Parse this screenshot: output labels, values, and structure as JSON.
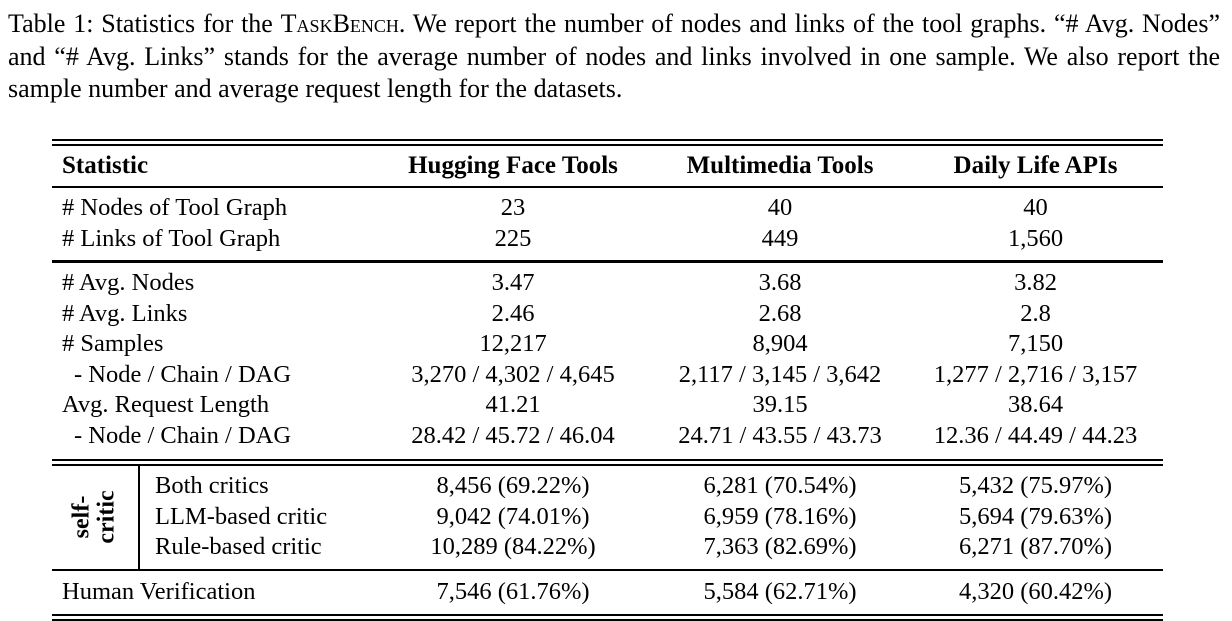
{
  "caption": {
    "part1": "Table 1: Statistics for the ",
    "taskbench": "TaskBench",
    "part2": ". We report the number of nodes and links of the tool graphs. “# Avg. Nodes” and “# Avg. Links” stands for the average number of nodes and links involved in one sample. We also report the sample number and average request length for the datasets."
  },
  "table": {
    "header": {
      "statistic": "Statistic",
      "col1": "Hugging Face Tools",
      "col2": "Multimedia Tools",
      "col3": "Daily Life APIs"
    },
    "section1": {
      "rows": [
        {
          "label": "# Nodes of Tool Graph",
          "v1": "23",
          "v2": "40",
          "v3": "40"
        },
        {
          "label": "# Links of Tool Graph",
          "v1": "225",
          "v2": "449",
          "v3": "1,560"
        }
      ]
    },
    "section2": {
      "rows": [
        {
          "label": "# Avg. Nodes",
          "v1": "3.47",
          "v2": "3.68",
          "v3": "3.82"
        },
        {
          "label": "# Avg. Links",
          "v1": "2.46",
          "v2": "2.68",
          "v3": "2.8"
        },
        {
          "label": "# Samples",
          "v1": "12,217",
          "v2": "8,904",
          "v3": "7,150"
        },
        {
          "label": "- Node / Chain / DAG",
          "v1": "3,270 / 4,302 / 4,645",
          "v2": "2,117 / 3,145 / 3,642",
          "v3": "1,277 / 2,716 / 3,157"
        },
        {
          "label": "Avg. Request Length",
          "v1": "41.21",
          "v2": "39.15",
          "v3": "38.64"
        },
        {
          "label": "- Node / Chain / DAG",
          "v1": "28.42 / 45.72 / 46.04",
          "v2": "24.71 / 43.55 / 43.73",
          "v3": "12.36 / 44.49 / 44.23"
        }
      ]
    },
    "self_critic": {
      "rot_label_line1": "self-",
      "rot_label_line2": "critic",
      "rows": [
        {
          "label": "Both critics",
          "v1": "8,456 (69.22%)",
          "v2": "6,281 (70.54%)",
          "v3": "5,432 (75.97%)"
        },
        {
          "label": "LLM-based critic",
          "v1": "9,042 (74.01%)",
          "v2": "6,959 (78.16%)",
          "v3": "5,694 (79.63%)"
        },
        {
          "label": "Rule-based critic",
          "v1": "10,289 (84.22%)",
          "v2": "7,363 (82.69%)",
          "v3": "6,271 (87.70%)"
        }
      ]
    },
    "footer": {
      "row": {
        "label": "Human Verification",
        "v1": "7,546 (61.76%)",
        "v2": "5,584 (62.71%)",
        "v3": "4,320 (60.42%)"
      }
    }
  }
}
